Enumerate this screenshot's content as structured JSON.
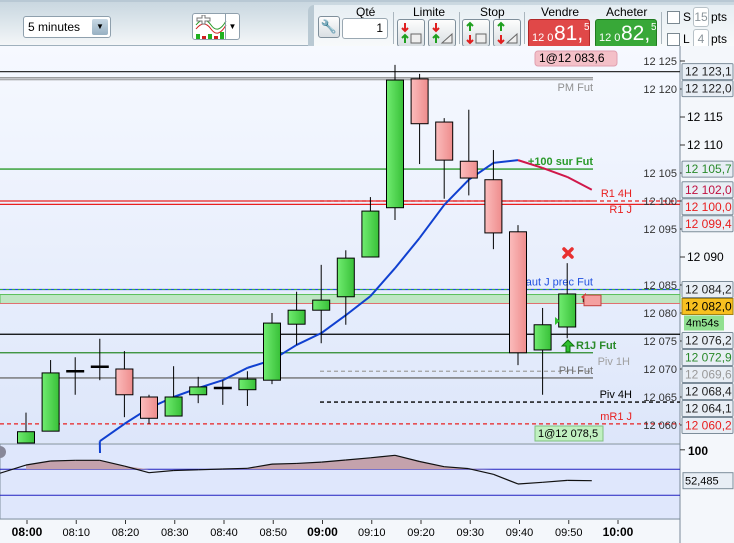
{
  "toolbar": {
    "timeframe": "5 minutes",
    "qty_label": "Qté",
    "qty_value": "1",
    "limit_label": "Limite",
    "stop_label": "Stop",
    "sell_label": "Vendre",
    "sell_price": {
      "small": "12 0",
      "big": "81,",
      "sup": "5"
    },
    "buy_label": "Acheter",
    "buy_price": {
      "small": "12 0",
      "big": "82,",
      "sup": "5"
    },
    "s_label": "S",
    "s_pts": "15",
    "l_label": "L",
    "l_pts": "4",
    "pts_label": "pts",
    "colors": {
      "sell": "#e04848",
      "buy": "#38a838"
    }
  },
  "chart_data": {
    "type": "candlestick",
    "times": [
      "08:00",
      "08:05",
      "08:10",
      "08:15",
      "08:20",
      "08:25",
      "08:30",
      "08:35",
      "08:40",
      "08:45",
      "08:50",
      "08:55",
      "09:00",
      "09:05",
      "09:10",
      "09:15",
      "09:20",
      "09:25",
      "09:30",
      "09:35",
      "09:40",
      "09:45",
      "09:50",
      "09:55"
    ],
    "candles": [
      [
        12056,
        12062.2,
        12055,
        12058.8
      ],
      [
        12058.9,
        12071.6,
        12058.9,
        12069.3
      ],
      [
        12069.6,
        12072.1,
        12065.4,
        12069.6
      ],
      [
        12070.4,
        12075.4,
        12068.0,
        12070.4
      ],
      [
        12070.0,
        12073.2,
        12061.4,
        12065.4
      ],
      [
        12065.0,
        12065.4,
        12060.2,
        12061.2
      ],
      [
        12061.6,
        12070.5,
        12061.6,
        12065.0
      ],
      [
        12065.4,
        12068.6,
        12063.9,
        12066.8
      ],
      [
        12066.6,
        12068.0,
        12063.6,
        12066.6
      ],
      [
        12066.3,
        12069.6,
        12063.4,
        12068.2
      ],
      [
        12068.0,
        12080.0,
        12067.3,
        12078.2
      ],
      [
        12078.0,
        12083.8,
        12074.3,
        12080.5
      ],
      [
        12080.5,
        12088.6,
        12074.6,
        12082.3
      ],
      [
        12082.9,
        12091.2,
        12077.9,
        12089.8
      ],
      [
        12090.0,
        12100.7,
        12090.0,
        12098.2
      ],
      [
        12098.8,
        12124.3,
        12096.6,
        12121.6
      ],
      [
        12121.8,
        12122.7,
        12106.6,
        12113.8
      ],
      [
        12114.1,
        12114.8,
        12100.4,
        12107.3
      ],
      [
        12107.1,
        12116.3,
        12101.0,
        12104.1
      ],
      [
        12103.8,
        12109.1,
        12091.4,
        12094.3
      ],
      [
        12094.5,
        12095.7,
        12070.7,
        12072.9
      ],
      [
        12073.4,
        12080.9,
        12065.4,
        12077.9
      ],
      [
        12077.5,
        12088.9,
        12075.5,
        12083.4
      ],
      [
        12083.0,
        12083.0,
        12082.0,
        12082.0
      ]
    ],
    "moving_average": [
      null,
      null,
      null,
      12057.1,
      12060.2,
      12063.0,
      12065.0,
      12066.6,
      12068.0,
      12070.2,
      12071.6,
      12074.3,
      12076.4,
      12079.6,
      12083.0,
      12088.0,
      12093.4,
      12099.3,
      12103.8,
      12106.8,
      12107.3,
      12105.9,
      12104.3,
      12102.0
    ],
    "ma_colors": {
      "rising": "#1040d0",
      "falling": "#d0184a"
    },
    "y_ticks": [
      "12 060",
      "12 065",
      "12 070",
      "12 075",
      "12 080",
      "12 085",
      "12 090",
      "12 095",
      "12 100",
      "12 105",
      "12 110",
      "12 115",
      "12 120",
      "12 125"
    ],
    "y_tick_values": [
      12060,
      12065,
      12070,
      12075,
      12080,
      12085,
      12090,
      12095,
      12100,
      12105,
      12110,
      12115,
      12120,
      12125
    ],
    "ylim": [
      12055,
      12125
    ],
    "x_ticks": [
      {
        "t": "08:00",
        "m": 0,
        "bold": true
      },
      {
        "t": "08:10",
        "m": 10
      },
      {
        "t": "08:20",
        "m": 20
      },
      {
        "t": "08:30",
        "m": 30
      },
      {
        "t": "08:40",
        "m": 40
      },
      {
        "t": "08:50",
        "m": 50
      },
      {
        "t": "09:00",
        "m": 60,
        "bold": true
      },
      {
        "t": "09:10",
        "m": 70
      },
      {
        "t": "09:20",
        "m": 80
      },
      {
        "t": "09:30",
        "m": 90
      },
      {
        "t": "09:40",
        "m": 100
      },
      {
        "t": "09:50",
        "m": 110
      },
      {
        "t": "10:00",
        "m": 120,
        "bold": true
      }
    ],
    "levels": [
      {
        "price": 12123.1,
        "label": "",
        "axis_label": "12 123,1",
        "color": "#303030",
        "style": "solid",
        "span": "full"
      },
      {
        "price": 12122.0,
        "label": "PM Fut",
        "axis_label": "12 122,0",
        "color": "#909090",
        "style": "double",
        "span": "short"
      },
      {
        "price": 12105.7,
        "label": "+100 sur Fut",
        "axis_label": "12 105,7",
        "color": "#2a9a2a",
        "style": "solid",
        "span": "short"
      },
      {
        "price": 12100.0,
        "label": "R1 4H",
        "axis_label": "12 100,0",
        "color": "#e82020",
        "style": "dashed",
        "span": "right"
      },
      {
        "price": 12100.0,
        "label": "R1 J",
        "axis_label": "",
        "color": "#e82020",
        "style": "solid",
        "span": "short"
      },
      {
        "price": 12099.4,
        "label": "",
        "axis_label": "12 099,4",
        "color": "#e82020",
        "style": "solid",
        "span": "full"
      },
      {
        "price": 12084.2,
        "label": "Haut J prec Fut",
        "axis_label": "12 084,2",
        "color": "#2050e0",
        "style": "solid",
        "span": "full"
      },
      {
        "price": 12076.2,
        "label": "",
        "axis_label": "12 076,2",
        "color": "#000000",
        "style": "solid",
        "span": "full"
      },
      {
        "price": 12072.9,
        "label": "R1J Fut",
        "axis_label": "12 072,9",
        "color": "#2a8a2a",
        "style": "solid",
        "span": "short"
      },
      {
        "price": 12069.6,
        "label": "Piv 1H",
        "axis_label": "12 069,6",
        "color": "#a0a0a0",
        "style": "dashed",
        "span": "mid"
      },
      {
        "price": 12068.4,
        "label": "PH Fut",
        "axis_label": "12 068,4",
        "color": "#707070",
        "style": "solid",
        "span": "short"
      },
      {
        "price": 12064.1,
        "label": "Piv 4H",
        "axis_label": "12 064,1",
        "color": "#000000",
        "style": "dashed",
        "span": "right"
      },
      {
        "price": 12060.2,
        "label": "mR1 J",
        "axis_label": "12 060,2",
        "color": "#e82020",
        "style": "dashed",
        "span": "full"
      }
    ],
    "ma_label": "12 102,0",
    "last_price": "12 082,0",
    "countdown": "4m54s",
    "orders": [
      {
        "text": "1@12 083,6",
        "color": "#f4c0c8"
      },
      {
        "text": "1@12 078,5",
        "color": "#c0f0c0"
      }
    ],
    "indicator": {
      "values": [
        76.6,
        82.8,
        83.8,
        83.8,
        75,
        64.8,
        68.2,
        69.2,
        70.5,
        71.5,
        78,
        79,
        81,
        84.3,
        87.7,
        91.5,
        82,
        74,
        71,
        62.3,
        47.4,
        50,
        53,
        52.5
      ],
      "upper": 70,
      "lower": 30,
      "top_label": "100",
      "last_label": "52,485",
      "ylim": [
        -8,
        102
      ]
    }
  }
}
